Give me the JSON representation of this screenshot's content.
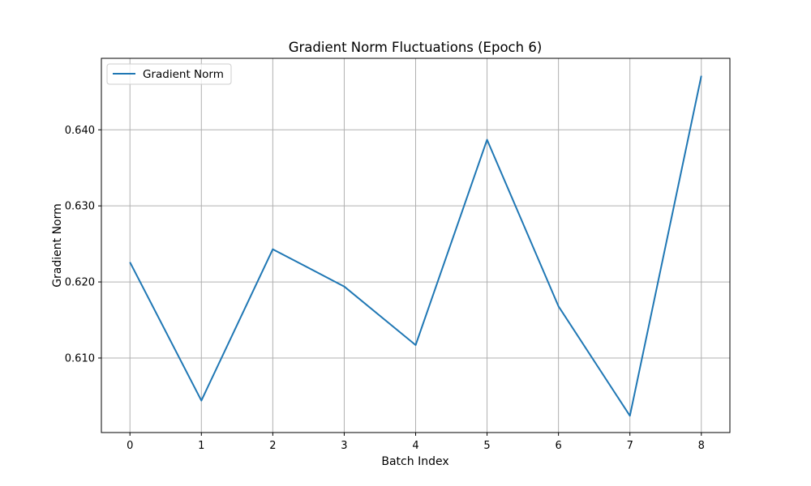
{
  "chart_data": {
    "type": "line",
    "title": "Gradient Norm Fluctuations (Epoch 6)",
    "xlabel": "Batch Index",
    "ylabel": "Gradient Norm",
    "x": [
      0,
      1,
      2,
      3,
      4,
      5,
      6,
      7,
      8
    ],
    "x_ticks": [
      "0",
      "1",
      "2",
      "3",
      "4",
      "5",
      "6",
      "7",
      "8"
    ],
    "y_ticks": [
      "0.610",
      "0.620",
      "0.630",
      "0.640"
    ],
    "y_tick_values": [
      0.61,
      0.62,
      0.63,
      0.64
    ],
    "xlim": [
      -0.4,
      8.4
    ],
    "ylim": [
      0.6002,
      0.6494
    ],
    "grid": true,
    "legend_position": "top-left",
    "series": [
      {
        "name": "Gradient Norm",
        "color": "#1f77b4",
        "values": [
          0.6226,
          0.6044,
          0.6243,
          0.6194,
          0.6117,
          0.6387,
          0.6168,
          0.6024,
          0.6471
        ]
      }
    ]
  }
}
